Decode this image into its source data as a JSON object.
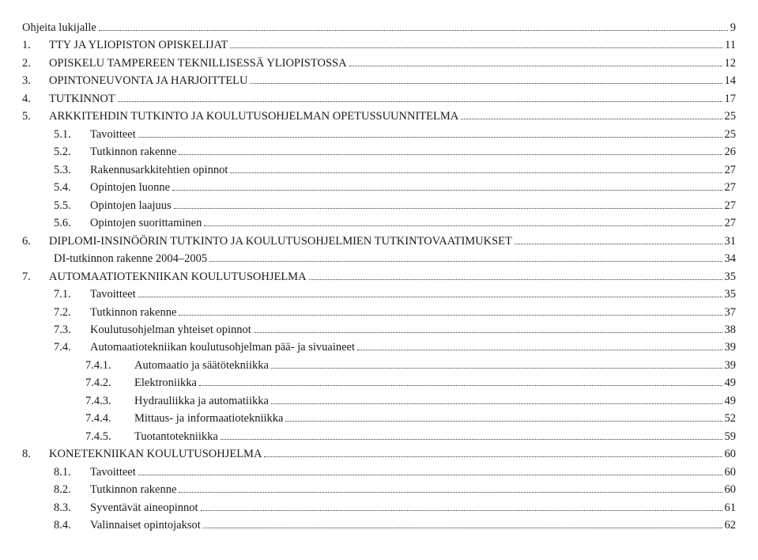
{
  "toc": [
    {
      "indent": 0,
      "num": "",
      "title": "Ohjeita lukijalle",
      "page": "9"
    },
    {
      "indent": 0,
      "num": "1.",
      "title": "TTY JA YLIOPISTON OPISKELIJAT",
      "page": "11"
    },
    {
      "indent": 0,
      "num": "2.",
      "title": "OPISKELU TAMPEREEN TEKNILLISESSÄ YLIOPISTOSSA",
      "page": "12"
    },
    {
      "indent": 0,
      "num": "3.",
      "title": "OPINTONEUVONTA JA HARJOITTELU",
      "page": "14"
    },
    {
      "indent": 0,
      "num": "4.",
      "title": "TUTKINNOT",
      "page": "17"
    },
    {
      "indent": 0,
      "num": "5.",
      "title": "ARKKITEHDIN TUTKINTO JA KOULUTUSOHJELMAN OPETUSSUUNNITELMA",
      "page": "25"
    },
    {
      "indent": 1,
      "num": "5.1.",
      "title": "Tavoitteet",
      "page": "25"
    },
    {
      "indent": 1,
      "num": "5.2.",
      "title": "Tutkinnon rakenne",
      "page": "26"
    },
    {
      "indent": 1,
      "num": "5.3.",
      "title": "Rakennusarkkitehtien opinnot",
      "page": "27"
    },
    {
      "indent": 1,
      "num": "5.4.",
      "title": "Opintojen luonne",
      "page": "27"
    },
    {
      "indent": 1,
      "num": "5.5.",
      "title": "Opintojen laajuus",
      "page": "27"
    },
    {
      "indent": 1,
      "num": "5.6.",
      "title": "Opintojen suorittaminen",
      "page": "27"
    },
    {
      "indent": 0,
      "num": "6.",
      "title": "DIPLOMI-INSINÖÖRIN TUTKINTO JA KOULUTUSOHJELMIEN TUTKINTOVAATIMUKSET",
      "page": "31"
    },
    {
      "indent": 1,
      "num": "",
      "title": "DI-tutkinnon rakenne 2004–2005",
      "page": "34"
    },
    {
      "indent": 0,
      "num": "7.",
      "title": "AUTOMAATIOTEKNIIKAN KOULUTUSOHJELMA",
      "page": "35"
    },
    {
      "indent": 1,
      "num": "7.1.",
      "title": "Tavoitteet",
      "page": "35"
    },
    {
      "indent": 1,
      "num": "7.2.",
      "title": "Tutkinnon rakenne",
      "page": "37"
    },
    {
      "indent": 1,
      "num": "7.3.",
      "title": "Koulutusohjelman yhteiset opinnot",
      "page": "38"
    },
    {
      "indent": 1,
      "num": "7.4.",
      "title": "Automaatiotekniikan koulutusohjelman pää- ja sivuaineet",
      "page": "39"
    },
    {
      "indent": 2,
      "num": "7.4.1.",
      "title": "Automaatio ja säätötekniikka",
      "page": "39"
    },
    {
      "indent": 2,
      "num": "7.4.2.",
      "title": "Elektroniikka",
      "page": "49"
    },
    {
      "indent": 2,
      "num": "7.4.3.",
      "title": "Hydrauliikka ja automatiikka",
      "page": "49"
    },
    {
      "indent": 2,
      "num": "7.4.4.",
      "title": "Mittaus- ja informaatiotekniikka",
      "page": "52"
    },
    {
      "indent": 2,
      "num": "7.4.5.",
      "title": "Tuotantotekniikka",
      "page": "59"
    },
    {
      "indent": 0,
      "num": "8.",
      "title": "KONETEKNIIKAN KOULUTUSOHJELMA",
      "page": "60"
    },
    {
      "indent": 1,
      "num": "8.1.",
      "title": "Tavoitteet",
      "page": "60"
    },
    {
      "indent": 1,
      "num": "8.2.",
      "title": "Tutkinnon rakenne",
      "page": "60"
    },
    {
      "indent": 1,
      "num": "8.3.",
      "title": "Syventävät aineopinnot",
      "page": "61"
    },
    {
      "indent": 1,
      "num": "8.4.",
      "title": "Valinnaiset opintojaksot",
      "page": "62"
    }
  ]
}
